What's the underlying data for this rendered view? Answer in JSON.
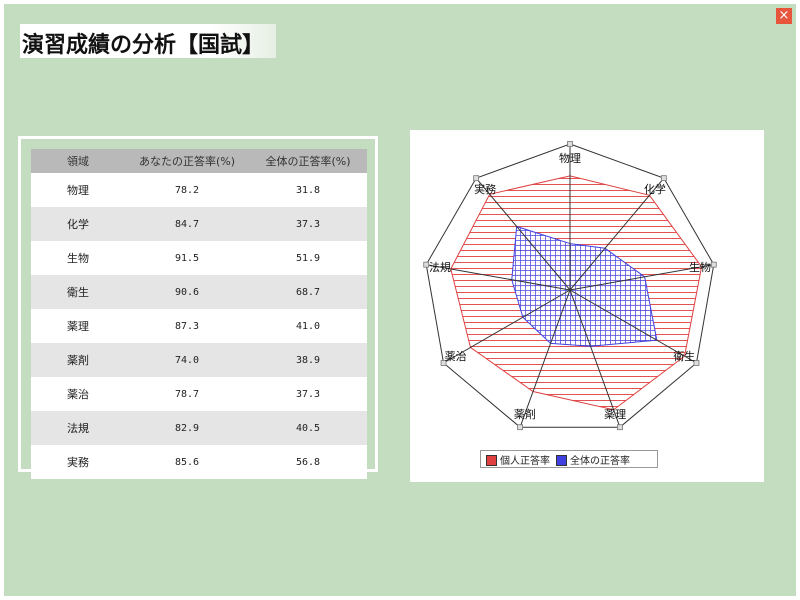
{
  "page": {
    "title": "演習成績の分析【国試】",
    "close_label": "×"
  },
  "table": {
    "headers": [
      "領域",
      "あなたの正答率(%)",
      "全体の正答率(%)"
    ],
    "rows": [
      [
        "物理",
        "78.2",
        "31.8"
      ],
      [
        "化学",
        "84.7",
        "37.3"
      ],
      [
        "生物",
        "91.5",
        "51.9"
      ],
      [
        "衛生",
        "90.6",
        "68.7"
      ],
      [
        "薬理",
        "87.3",
        "41.0"
      ],
      [
        "薬剤",
        "74.0",
        "38.9"
      ],
      [
        "薬治",
        "78.7",
        "37.3"
      ],
      [
        "法規",
        "82.9",
        "40.5"
      ],
      [
        "実務",
        "85.6",
        "56.8"
      ]
    ]
  },
  "colors": {
    "personal": "#e04040",
    "overall": "#4040e0",
    "personal_fill": "#ffe4e4",
    "overall_fill": "#ececff"
  },
  "chart_data": {
    "type": "radar",
    "categories": [
      "物理",
      "化学",
      "生物",
      "衛生",
      "薬理",
      "薬剤",
      "薬治",
      "法規",
      "実務"
    ],
    "series": [
      {
        "name": "個人正答率",
        "values": [
          78.2,
          84.7,
          91.5,
          90.6,
          87.3,
          74.0,
          78.7,
          82.9,
          85.6
        ]
      },
      {
        "name": "全体の正答率",
        "values": [
          31.8,
          37.3,
          51.9,
          68.7,
          41.0,
          38.9,
          37.3,
          40.5,
          56.8
        ]
      }
    ],
    "range": [
      0,
      100
    ],
    "legend": [
      "個人正答率",
      "全体の正答率"
    ],
    "legend_position": "bottom"
  }
}
